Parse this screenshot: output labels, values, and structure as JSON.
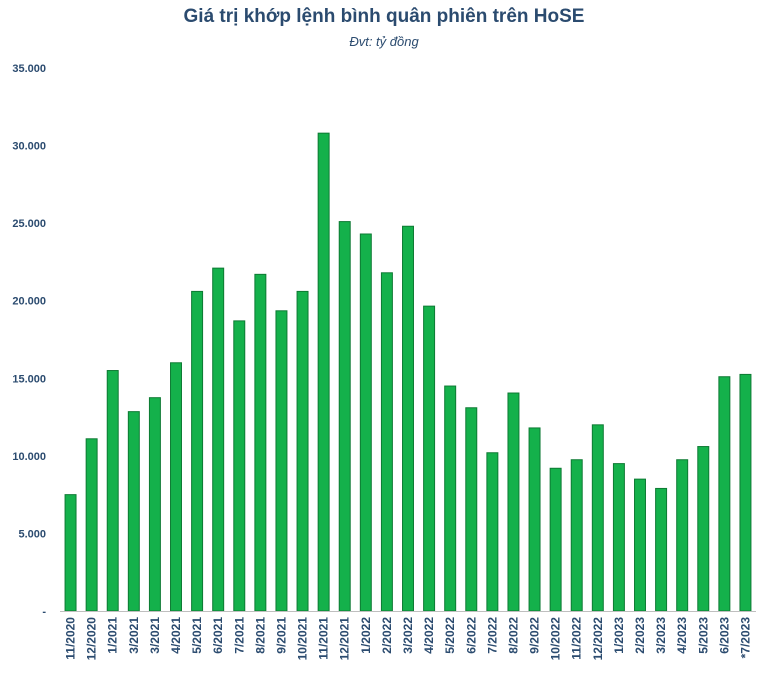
{
  "chart_data": {
    "type": "bar",
    "title": "Giá trị khớp lệnh bình quân phiên trên HoSE",
    "subtitle": "Đvt: tỷ đồng",
    "categories": [
      "11/2020",
      "12/2020",
      "1/2021",
      "3/2021",
      "3/2021",
      "4/2021",
      "5/2021",
      "6/2021",
      "7/2021",
      "8/2021",
      "9/2021",
      "10/2021",
      "11/2021",
      "12/2021",
      "1/2022",
      "2/2022",
      "3/2022",
      "4/2022",
      "5/2022",
      "6/2022",
      "7/2022",
      "8/2022",
      "9/2022",
      "10/2022",
      "11/2022",
      "12/2022",
      "1/2023",
      "2/2023",
      "3/2023",
      "4/2023",
      "5/2023",
      "6/2023",
      "*7/2023"
    ],
    "values": [
      7500,
      11100,
      15500,
      12850,
      13750,
      16000,
      20600,
      22100,
      18700,
      21700,
      19350,
      20600,
      30800,
      25100,
      24300,
      21800,
      24800,
      19650,
      14500,
      13100,
      10200,
      14050,
      11800,
      9200,
      9750,
      12000,
      9500,
      8500,
      7900,
      9750,
      10600,
      15100,
      15250
    ],
    "ylim": [
      0,
      35000
    ],
    "yticks": [
      0,
      5000,
      10000,
      15000,
      20000,
      25000,
      30000,
      35000
    ],
    "ytick_labels": [
      "-",
      "5.000",
      "10.000",
      "15.000",
      "20.000",
      "25.000",
      "30.000",
      "35.000"
    ],
    "grid": false,
    "legend": "none",
    "colors": {
      "bar_fill": "#14b14b",
      "bar_stroke": "#0d7a33",
      "axis": "#2b4b6f",
      "text": "#2b4b6f"
    }
  }
}
